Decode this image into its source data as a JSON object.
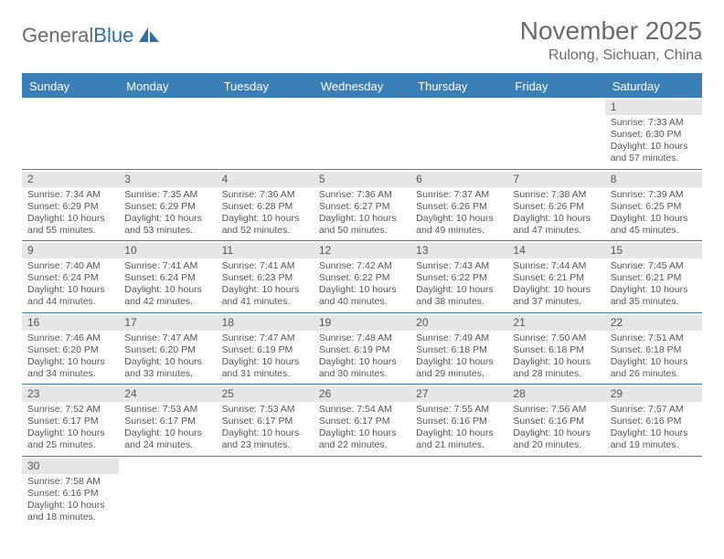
{
  "logo": {
    "text1": "General",
    "text2": "Blue"
  },
  "header": {
    "month_title": "November 2025",
    "location": "Rulong, Sichuan, China"
  },
  "colors": {
    "header_blue": "#3b7fb8",
    "daynum_bg": "#e6e6e6",
    "text_gray": "#555555",
    "title_gray": "#6b6b6b"
  },
  "day_names": [
    "Sunday",
    "Monday",
    "Tuesday",
    "Wednesday",
    "Thursday",
    "Friday",
    "Saturday"
  ],
  "weeks": [
    [
      null,
      null,
      null,
      null,
      null,
      null,
      {
        "num": "1",
        "sunrise": "Sunrise: 7:33 AM",
        "sunset": "Sunset: 6:30 PM",
        "daylight1": "Daylight: 10 hours",
        "daylight2": "and 57 minutes."
      }
    ],
    [
      {
        "num": "2",
        "sunrise": "Sunrise: 7:34 AM",
        "sunset": "Sunset: 6:29 PM",
        "daylight1": "Daylight: 10 hours",
        "daylight2": "and 55 minutes."
      },
      {
        "num": "3",
        "sunrise": "Sunrise: 7:35 AM",
        "sunset": "Sunset: 6:29 PM",
        "daylight1": "Daylight: 10 hours",
        "daylight2": "and 53 minutes."
      },
      {
        "num": "4",
        "sunrise": "Sunrise: 7:36 AM",
        "sunset": "Sunset: 6:28 PM",
        "daylight1": "Daylight: 10 hours",
        "daylight2": "and 52 minutes."
      },
      {
        "num": "5",
        "sunrise": "Sunrise: 7:36 AM",
        "sunset": "Sunset: 6:27 PM",
        "daylight1": "Daylight: 10 hours",
        "daylight2": "and 50 minutes."
      },
      {
        "num": "6",
        "sunrise": "Sunrise: 7:37 AM",
        "sunset": "Sunset: 6:26 PM",
        "daylight1": "Daylight: 10 hours",
        "daylight2": "and 49 minutes."
      },
      {
        "num": "7",
        "sunrise": "Sunrise: 7:38 AM",
        "sunset": "Sunset: 6:26 PM",
        "daylight1": "Daylight: 10 hours",
        "daylight2": "and 47 minutes."
      },
      {
        "num": "8",
        "sunrise": "Sunrise: 7:39 AM",
        "sunset": "Sunset: 6:25 PM",
        "daylight1": "Daylight: 10 hours",
        "daylight2": "and 45 minutes."
      }
    ],
    [
      {
        "num": "9",
        "sunrise": "Sunrise: 7:40 AM",
        "sunset": "Sunset: 6:24 PM",
        "daylight1": "Daylight: 10 hours",
        "daylight2": "and 44 minutes."
      },
      {
        "num": "10",
        "sunrise": "Sunrise: 7:41 AM",
        "sunset": "Sunset: 6:24 PM",
        "daylight1": "Daylight: 10 hours",
        "daylight2": "and 42 minutes."
      },
      {
        "num": "11",
        "sunrise": "Sunrise: 7:41 AM",
        "sunset": "Sunset: 6:23 PM",
        "daylight1": "Daylight: 10 hours",
        "daylight2": "and 41 minutes."
      },
      {
        "num": "12",
        "sunrise": "Sunrise: 7:42 AM",
        "sunset": "Sunset: 6:22 PM",
        "daylight1": "Daylight: 10 hours",
        "daylight2": "and 40 minutes."
      },
      {
        "num": "13",
        "sunrise": "Sunrise: 7:43 AM",
        "sunset": "Sunset: 6:22 PM",
        "daylight1": "Daylight: 10 hours",
        "daylight2": "and 38 minutes."
      },
      {
        "num": "14",
        "sunrise": "Sunrise: 7:44 AM",
        "sunset": "Sunset: 6:21 PM",
        "daylight1": "Daylight: 10 hours",
        "daylight2": "and 37 minutes."
      },
      {
        "num": "15",
        "sunrise": "Sunrise: 7:45 AM",
        "sunset": "Sunset: 6:21 PM",
        "daylight1": "Daylight: 10 hours",
        "daylight2": "and 35 minutes."
      }
    ],
    [
      {
        "num": "16",
        "sunrise": "Sunrise: 7:46 AM",
        "sunset": "Sunset: 6:20 PM",
        "daylight1": "Daylight: 10 hours",
        "daylight2": "and 34 minutes."
      },
      {
        "num": "17",
        "sunrise": "Sunrise: 7:47 AM",
        "sunset": "Sunset: 6:20 PM",
        "daylight1": "Daylight: 10 hours",
        "daylight2": "and 33 minutes."
      },
      {
        "num": "18",
        "sunrise": "Sunrise: 7:47 AM",
        "sunset": "Sunset: 6:19 PM",
        "daylight1": "Daylight: 10 hours",
        "daylight2": "and 31 minutes."
      },
      {
        "num": "19",
        "sunrise": "Sunrise: 7:48 AM",
        "sunset": "Sunset: 6:19 PM",
        "daylight1": "Daylight: 10 hours",
        "daylight2": "and 30 minutes."
      },
      {
        "num": "20",
        "sunrise": "Sunrise: 7:49 AM",
        "sunset": "Sunset: 6:18 PM",
        "daylight1": "Daylight: 10 hours",
        "daylight2": "and 29 minutes."
      },
      {
        "num": "21",
        "sunrise": "Sunrise: 7:50 AM",
        "sunset": "Sunset: 6:18 PM",
        "daylight1": "Daylight: 10 hours",
        "daylight2": "and 28 minutes."
      },
      {
        "num": "22",
        "sunrise": "Sunrise: 7:51 AM",
        "sunset": "Sunset: 6:18 PM",
        "daylight1": "Daylight: 10 hours",
        "daylight2": "and 26 minutes."
      }
    ],
    [
      {
        "num": "23",
        "sunrise": "Sunrise: 7:52 AM",
        "sunset": "Sunset: 6:17 PM",
        "daylight1": "Daylight: 10 hours",
        "daylight2": "and 25 minutes."
      },
      {
        "num": "24",
        "sunrise": "Sunrise: 7:53 AM",
        "sunset": "Sunset: 6:17 PM",
        "daylight1": "Daylight: 10 hours",
        "daylight2": "and 24 minutes."
      },
      {
        "num": "25",
        "sunrise": "Sunrise: 7:53 AM",
        "sunset": "Sunset: 6:17 PM",
        "daylight1": "Daylight: 10 hours",
        "daylight2": "and 23 minutes."
      },
      {
        "num": "26",
        "sunrise": "Sunrise: 7:54 AM",
        "sunset": "Sunset: 6:17 PM",
        "daylight1": "Daylight: 10 hours",
        "daylight2": "and 22 minutes."
      },
      {
        "num": "27",
        "sunrise": "Sunrise: 7:55 AM",
        "sunset": "Sunset: 6:16 PM",
        "daylight1": "Daylight: 10 hours",
        "daylight2": "and 21 minutes."
      },
      {
        "num": "28",
        "sunrise": "Sunrise: 7:56 AM",
        "sunset": "Sunset: 6:16 PM",
        "daylight1": "Daylight: 10 hours",
        "daylight2": "and 20 minutes."
      },
      {
        "num": "29",
        "sunrise": "Sunrise: 7:57 AM",
        "sunset": "Sunset: 6:16 PM",
        "daylight1": "Daylight: 10 hours",
        "daylight2": "and 19 minutes."
      }
    ],
    [
      {
        "num": "30",
        "sunrise": "Sunrise: 7:58 AM",
        "sunset": "Sunset: 6:16 PM",
        "daylight1": "Daylight: 10 hours",
        "daylight2": "and 18 minutes."
      },
      null,
      null,
      null,
      null,
      null,
      null
    ]
  ]
}
